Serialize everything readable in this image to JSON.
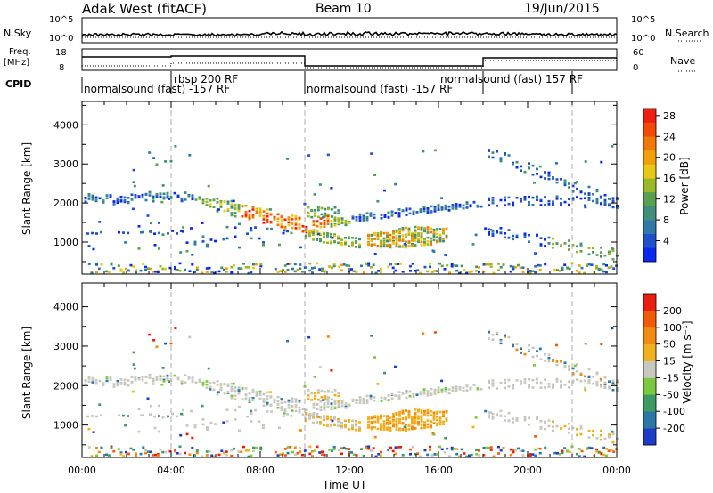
{
  "header": {
    "station": "Adak West (fitACF)",
    "beam": "Beam 10",
    "date": "19/Jun/2015"
  },
  "info_panels": {
    "nsky_label": "N.Sky",
    "nsky_ticks": [
      "10^5",
      "10^0"
    ],
    "nsearch_label": "N.Search",
    "freq_label": "Freq.",
    "freq_unit": "[MHz]",
    "freq_ticks": [
      "18",
      "8"
    ],
    "nave_label": "Nave",
    "nave_ticks": [
      "60",
      "0"
    ],
    "cpid_label": "CPID",
    "cpid_segments": [
      {
        "label": "normalsound (fast) -157 RF",
        "start_h": 0,
        "end_h": 4
      },
      {
        "label": "rbsp 200 RF",
        "start_h": 4,
        "end_h": 10
      },
      {
        "label": "normalsound (fast) -157 RF",
        "start_h": 10,
        "end_h": 18
      },
      {
        "label": "normalsound (fast) 157 RF",
        "start_h": 18,
        "end_h": 22
      }
    ]
  },
  "chart_data": [
    {
      "type": "heatmap",
      "panel": "power",
      "ylabel": "Slant Range [km]",
      "xlabel": "",
      "ylim": [
        180,
        4600
      ],
      "xlim_hours": [
        0,
        24
      ],
      "y_ticks": [
        1000,
        2000,
        3000,
        4000
      ],
      "colorbar": {
        "label": "Power [dB]",
        "ticks": [
          "4",
          "8",
          "12",
          "16",
          "20",
          "24",
          "28"
        ],
        "colors": [
          "#0a28f0",
          "#1e50c8",
          "#2f78a8",
          "#3f8f7a",
          "#5aa050",
          "#9ab82a",
          "#e8c814",
          "#f0a00a",
          "#f07808",
          "#f04a06",
          "#f01e10"
        ]
      },
      "features": [
        {
          "desc": "band",
          "t0": 0.0,
          "t1": 10.0,
          "r0": 2100,
          "r1": 1400,
          "level": "mid-high"
        },
        {
          "desc": "band",
          "t0": 10.0,
          "t1": 18.0,
          "r0": 1400,
          "r1": 2000,
          "level": "mid"
        },
        {
          "desc": "patch",
          "t0": 13.0,
          "t1": 16.3,
          "r0": 800,
          "r1": 1300,
          "level": "high"
        }
      ]
    },
    {
      "type": "heatmap",
      "panel": "velocity",
      "ylabel": "Slant Range [km]",
      "xlabel": "Time UT",
      "ylim": [
        180,
        4600
      ],
      "xlim_hours": [
        0,
        24
      ],
      "y_ticks": [
        1000,
        2000,
        3000,
        4000
      ],
      "x_tick_labels": [
        "00:00",
        "04:00",
        "08:00",
        "12:00",
        "16:00",
        "20:00",
        "00:00"
      ],
      "colorbar": {
        "label": "Velocity [m s⁻¹]",
        "ticks": [
          "200",
          "100",
          "50",
          "15",
          "-15",
          "-50",
          "-100",
          "-200"
        ],
        "colors": [
          "#1e3cc8",
          "#2a78a8",
          "#3c9a64",
          "#7cc840",
          "#c8c8c0",
          "#f0b020",
          "#f08a10",
          "#f05a08",
          "#e81e10"
        ]
      },
      "features": [
        {
          "desc": "ground scatter band",
          "t0": 0.0,
          "t1": 18.0,
          "r0": 2100,
          "r1": 1400,
          "color": "gray"
        },
        {
          "desc": "westward flow",
          "t0": 13.0,
          "t1": 16.3,
          "r0": 800,
          "r1": 1300,
          "color": "orange"
        }
      ]
    }
  ]
}
